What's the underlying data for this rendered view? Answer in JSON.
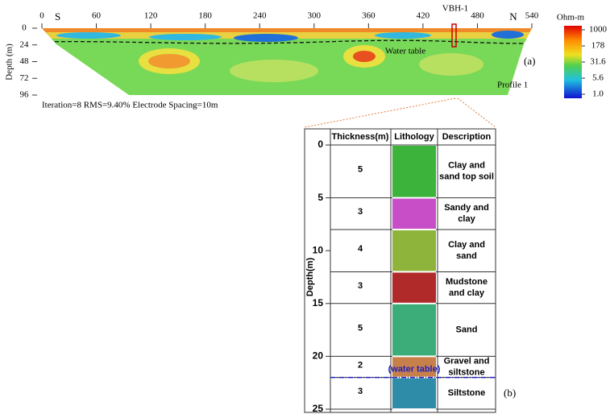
{
  "section": {
    "x_ticks": [
      0,
      60,
      120,
      180,
      240,
      300,
      360,
      420,
      480,
      540
    ],
    "xlim": [
      0,
      540
    ],
    "depth_ticks": [
      0,
      24,
      48,
      72,
      96
    ],
    "depth_lim": [
      0,
      96
    ],
    "depth_label": "Depth (m)",
    "south": "S",
    "north": "N",
    "borehole": "VBH-1",
    "water_table": "Water table",
    "panel": "(a)",
    "profile": "Profile 1",
    "caption": "Iteration=8  RMS=9.40%  Electrode Spacing=10m",
    "colorbar": {
      "unit": "Ohm-m",
      "log_scale": true,
      "lim": [
        1,
        1000
      ],
      "ticks": [
        1000,
        178,
        31.6,
        5.6,
        {
          "value": 1,
          "label": "1.0"
        }
      ]
    }
  },
  "log": {
    "headers": [
      "Thickness(m)",
      "Lithology",
      "Description"
    ],
    "depth_label": "Depth(m)",
    "depth_ticks": [
      0,
      5,
      10,
      15,
      20,
      25
    ],
    "depth_lim": [
      0,
      25
    ],
    "layers": [
      {
        "thickness": 5,
        "color": "#3cb43c",
        "description": [
          "Clay and",
          "sand top soil"
        ]
      },
      {
        "thickness": 3,
        "color": "#c84ec8",
        "description": [
          "Sandy and",
          "clay"
        ]
      },
      {
        "thickness": 4,
        "color": "#8fb43c",
        "description": [
          "Clay and",
          "sand"
        ]
      },
      {
        "thickness": 3,
        "color": "#b02a2a",
        "description": [
          "Mudstone",
          "and clay"
        ]
      },
      {
        "thickness": 5,
        "color": "#3cac78",
        "description": [
          "Sand"
        ]
      },
      {
        "thickness": 2,
        "color": "#c8804a",
        "description": [
          "Gravel and",
          "siltstone"
        ]
      },
      {
        "thickness": 3,
        "color": "#2e8ca8",
        "description": [
          "Siltstone"
        ]
      }
    ],
    "water_table_depth": 22,
    "water_table": "(water table)",
    "panel": "(b)"
  }
}
